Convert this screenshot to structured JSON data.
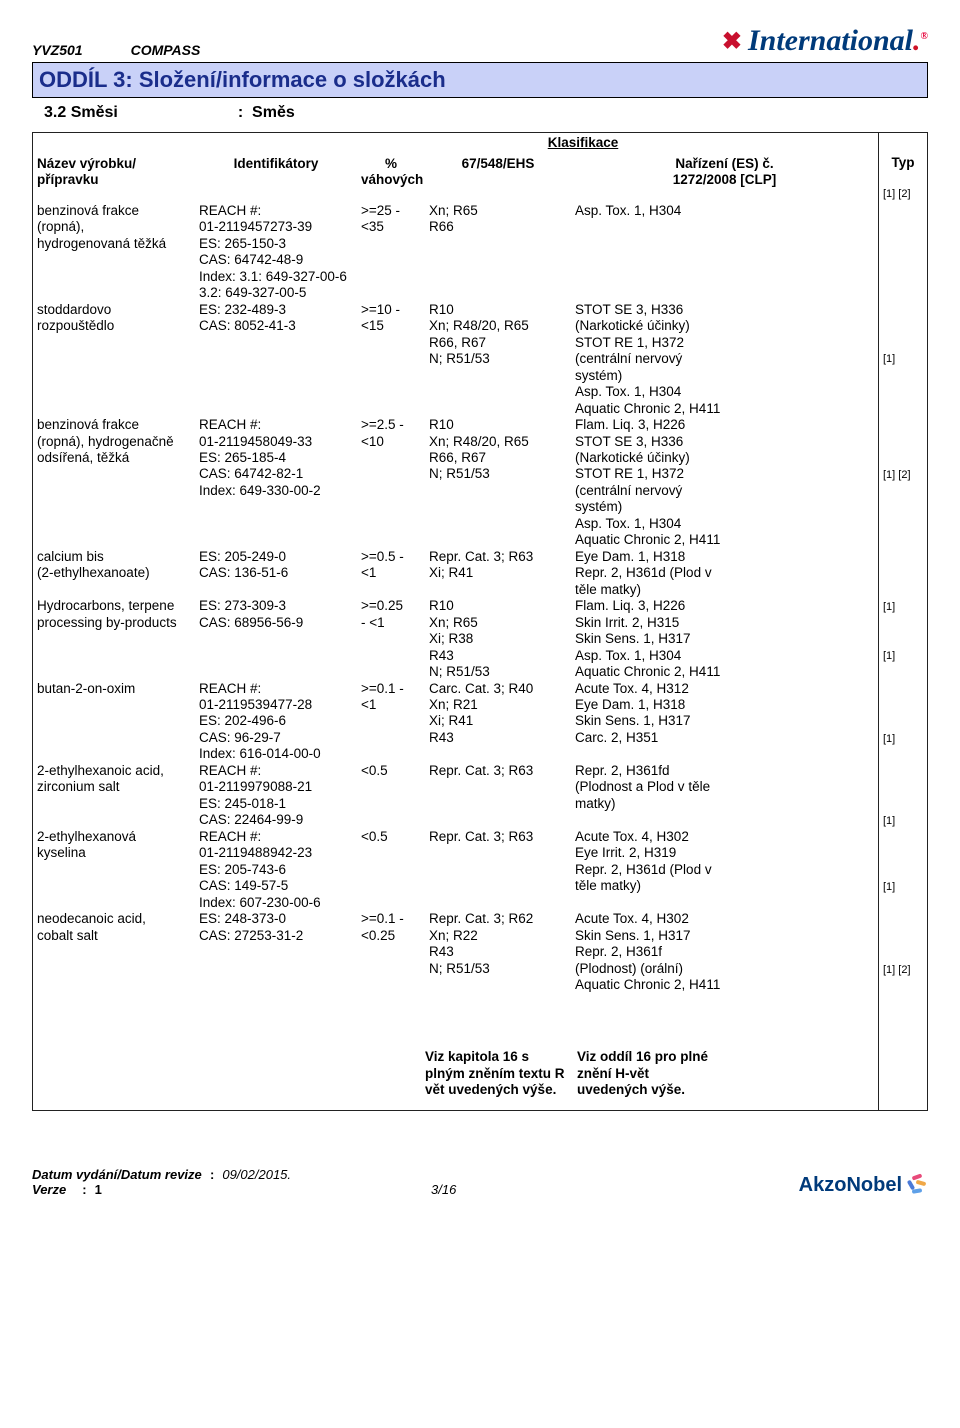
{
  "header": {
    "code": "YVZ501",
    "system": "COMPASS",
    "brand_prefix": "✖",
    "brand_name": "International",
    "brand_dot": "."
  },
  "section_title": "ODDÍL 3: Složení/informace o složkách",
  "sub": {
    "num": "3.2 Směsi",
    "colon": ":",
    "val": "Směs"
  },
  "columns": {
    "name": "Název výrobku/\npřípravku",
    "id": "Identifikátory",
    "pct": "%\nváhových",
    "klas": "Klasifikace",
    "ehs": "67/548/EHS",
    "reg": "Nařízení (ES) č.\n1272/2008 [CLP]",
    "typ": "Typ"
  },
  "rows": [
    {
      "name": "benzinová frakce\n(ropná),\nhydrogenovaná těžká",
      "id": "REACH #:\n01-2119457273-39\nES: 265-150-3\nCAS: 64742-48-9\nIndex: 3.1: 649-327-00-6\n3.2: 649-327-00-5",
      "pct": ">=25 -\n<35",
      "ehs": "Xn; R65\nR66",
      "reg": "Asp. Tox. 1, H304",
      "typ": "[1] [2]",
      "blank_after": 4
    },
    {
      "name": "stoddardovo\nrozpouštědlo",
      "id": "ES: 232-489-3\nCAS: 8052-41-3",
      "pct": ">=10 -\n<15",
      "ehs": "R10\nXn; R48/20, R65\nR66, R67\nN; R51/53",
      "reg": "STOT SE 3, H336\n(Narkotické účinky)\nSTOT RE 1, H372\n(centrální nervový\nsystém)\nAsp. Tox. 1, H304\nAquatic Chronic 2, H411",
      "typ": "[1]",
      "blank_after": 0
    },
    {
      "name": "benzinová frakce\n(ropná), hydrogenačně\nodsířená, těžká",
      "id": "REACH #:\n01-2119458049-33\nES: 265-185-4\nCAS: 64742-82-1\nIndex: 649-330-00-2",
      "pct": ">=2.5 -\n<10",
      "ehs": "R10\nXn; R48/20, R65\nR66, R67\nN; R51/53",
      "reg": "Flam. Liq. 3, H226\nSTOT SE 3, H336\n(Narkotické účinky)\nSTOT RE 1, H372\n(centrální nervový\nsystém)\nAsp. Tox. 1, H304\nAquatic Chronic 2, H411",
      "typ": "[1] [2]",
      "blank_after": 0
    },
    {
      "name": "calcium bis\n(2-ethylhexanoate)",
      "id": "ES: 205-249-0\nCAS: 136-51-6",
      "pct": ">=0.5 -\n<1",
      "ehs": "Repr. Cat. 3; R63\nXi; R41",
      "reg": "Eye Dam. 1, H318\nRepr. 2, H361d (Plod v\ntěle matky)",
      "typ": "[1]",
      "blank_after": 0
    },
    {
      "name": "Hydrocarbons, terpene\nprocessing by-products",
      "id": "ES: 273-309-3\nCAS: 68956-56-9",
      "pct": ">=0.25\n- <1",
      "ehs": "R10\nXn; R65\nXi; R38\nR43\nN; R51/53",
      "reg": "Flam. Liq. 3, H226\nSkin Irrit. 2, H315\nSkin Sens. 1, H317\nAsp. Tox. 1, H304\nAquatic Chronic 2, H411",
      "typ": "[1]",
      "blank_after": 0
    },
    {
      "name": "butan-2-on-oxim",
      "id": "REACH #:\n01-2119539477-28\nES: 202-496-6\nCAS: 96-29-7\nIndex: 616-014-00-0",
      "pct": ">=0.1 -\n<1",
      "ehs": "Carc. Cat. 3; R40\nXn; R21\nXi; R41\nR43",
      "reg": "Acute Tox. 4, H312\nEye Dam. 1, H318\nSkin Sens. 1, H317\nCarc. 2, H351",
      "typ": "[1]",
      "blank_after": 0
    },
    {
      "name": "2-ethylhexanoic acid,\nzirconium salt",
      "id": "REACH #:\n01-2119979088-21\nES: 245-018-1\nCAS: 22464-99-9",
      "pct": "<0.5",
      "ehs": "Repr. Cat. 3; R63",
      "reg": "Repr. 2, H361fd\n(Plodnost a Plod v těle\nmatky)",
      "typ": "[1]",
      "blank_after": 0
    },
    {
      "name": "2-ethylhexanová\nkyselina",
      "id": "REACH #:\n01-2119488942-23\nES: 205-743-6\nCAS: 149-57-5\nIndex: 607-230-00-6",
      "pct": "<0.5",
      "ehs": "Repr. Cat. 3; R63",
      "reg": "Acute Tox. 4, H302\nEye Irrit. 2, H319\nRepr. 2, H361d (Plod v\ntěle matky)",
      "typ": "[1]",
      "blank_after": 0
    },
    {
      "name": "neodecanoic acid,\ncobalt salt",
      "id": "ES: 248-373-0\nCAS: 27253-31-2",
      "pct": ">=0.1 -\n<0.25",
      "ehs": "Repr. Cat. 3; R62\nXn; R22\nR43\nN; R51/53",
      "reg": "Acute Tox. 4, H302\nSkin Sens. 1, H317\nRepr. 2, H361f\n(Plodnost) (orální)\nAquatic Chronic 2, H411",
      "typ": "[1] [2]",
      "blank_after": 0
    }
  ],
  "foot": {
    "ehs": "Viz kapitola 16 s\nplným zněním textu R\nvět uvedených výše.",
    "reg": "Viz oddíl 16 pro plné\nznění H-vět\nuvedených výše."
  },
  "footer": {
    "date_lbl": "Datum vydání/Datum revize",
    "date_colon": ":",
    "date_val": "09/02/2015.",
    "ver_lbl": "Verze",
    "ver_colon": ":",
    "ver_val": "1",
    "page": "3/16",
    "akzo": "AkzoNobel"
  },
  "colors": {
    "section_bg": "#c9d1f8",
    "section_fg": "#1a2d8b",
    "brand_blue": "#003a7a",
    "brand_red": "#c8102e"
  }
}
